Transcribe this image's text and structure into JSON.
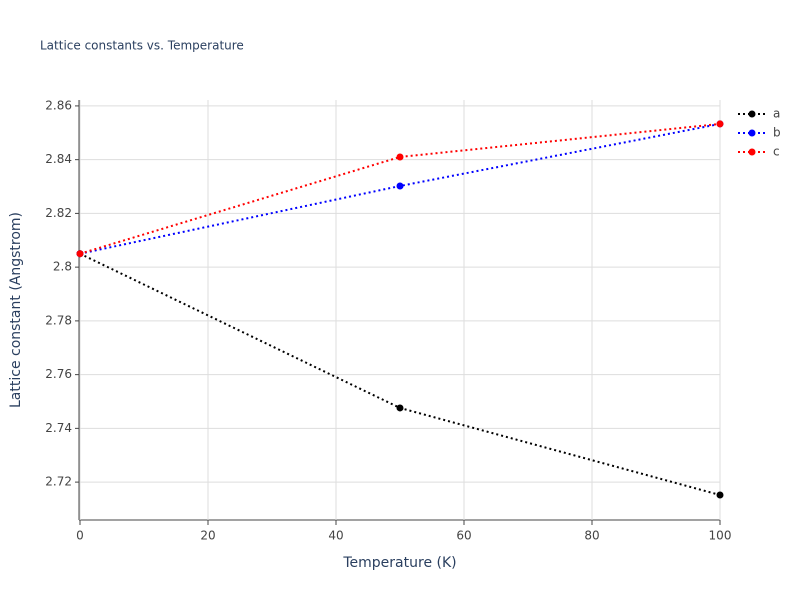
{
  "chart_data": {
    "type": "line",
    "title": "Lattice constants vs. Temperature",
    "x_label": "Temperature (K)",
    "y_label": "Lattice constant (Angstrom)",
    "x": [
      0,
      50,
      100
    ],
    "series": [
      {
        "name": "a",
        "color": "#000000",
        "values": [
          2.805,
          2.7476,
          2.7152
        ]
      },
      {
        "name": "b",
        "color": "#0000ff",
        "values": [
          2.805,
          2.8302,
          2.8533
        ]
      },
      {
        "name": "c",
        "color": "#ff0000",
        "values": [
          2.805,
          2.841,
          2.8533
        ]
      }
    ],
    "xlim": [
      0,
      100
    ],
    "xticks": [
      0,
      20,
      40,
      60,
      80,
      100
    ],
    "ylim": [
      2.7059,
      2.8622
    ],
    "yticks": [
      2.72,
      2.74,
      2.76,
      2.78,
      2.8,
      2.82,
      2.84,
      2.86
    ],
    "grid": true,
    "legend": "right"
  }
}
